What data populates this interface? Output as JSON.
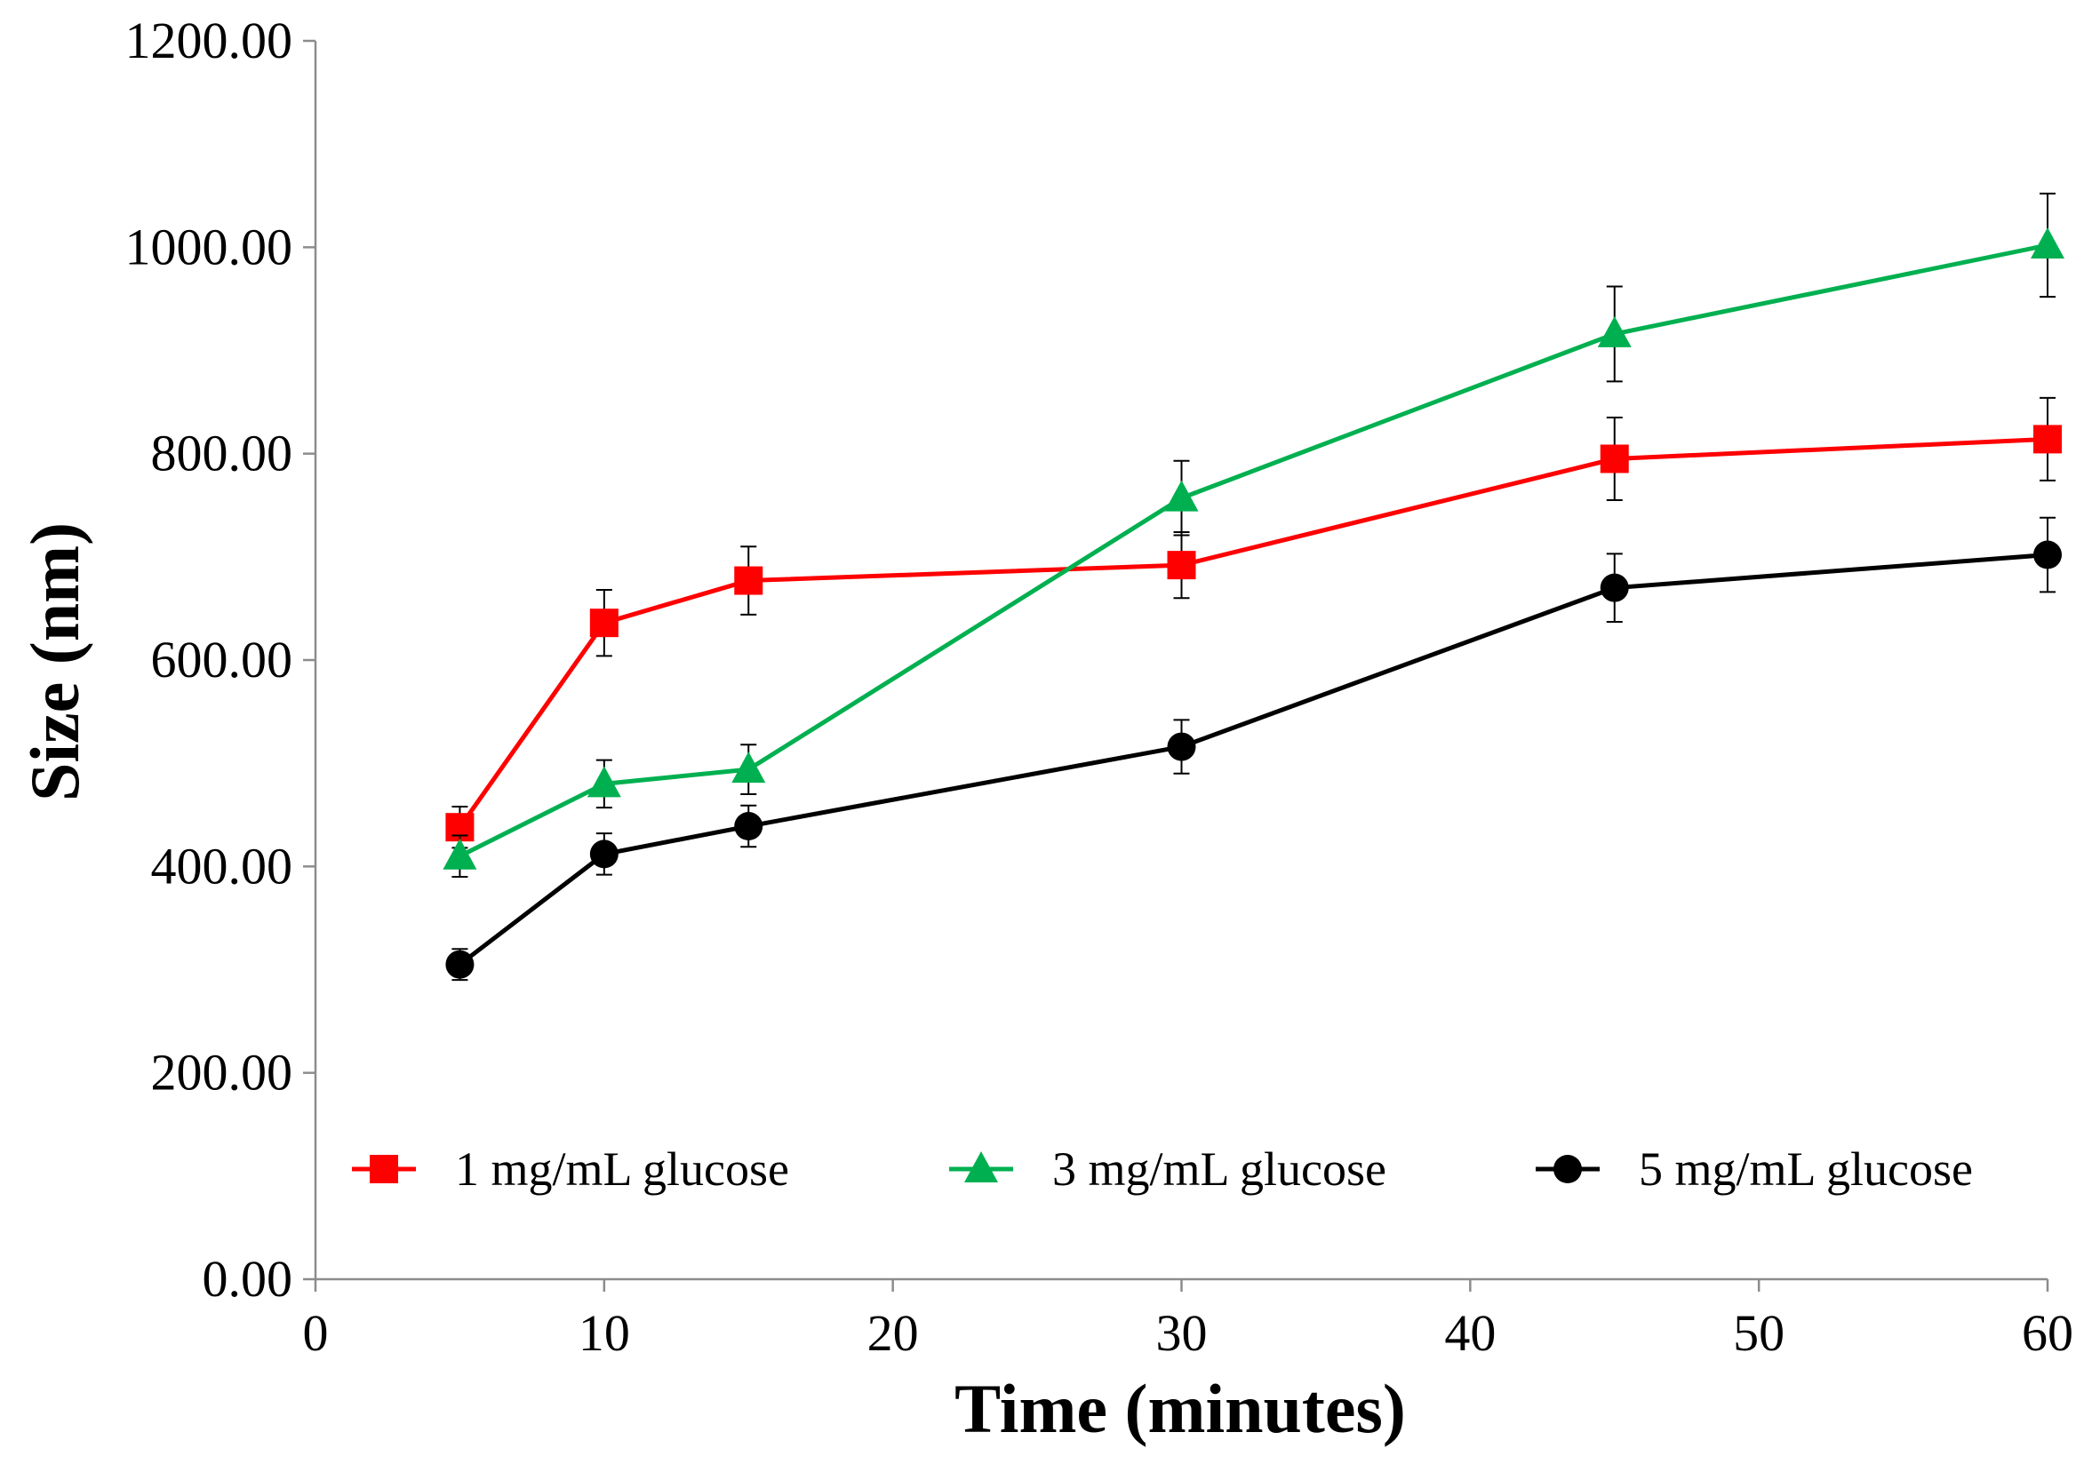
{
  "chart_data": {
    "type": "line",
    "title": "",
    "xlabel": "Time (minutes)",
    "ylabel": "Size (nm)",
    "xlim": [
      0,
      60
    ],
    "ylim": [
      0,
      1200
    ],
    "xticks": [
      "0",
      "10",
      "20",
      "30",
      "40",
      "50",
      "60"
    ],
    "yticks": [
      "0.00",
      "200.00",
      "400.00",
      "600.00",
      "800.00",
      "1000.00",
      "1200.00"
    ],
    "grid": false,
    "legend_position": "bottom",
    "series": [
      {
        "name": "1 mg/mL glucose",
        "color": "#ff0000",
        "marker": "square",
        "x": [
          5,
          10,
          15,
          30,
          45,
          60
        ],
        "y": [
          438,
          636,
          677,
          692,
          795,
          814
        ],
        "error": [
          20,
          32,
          33,
          32,
          40,
          40
        ]
      },
      {
        "name": "3 mg/mL glucose",
        "color": "#00b050",
        "marker": "triangle",
        "x": [
          5,
          10,
          15,
          30,
          45,
          60
        ],
        "y": [
          410,
          480,
          494,
          757,
          916,
          1002
        ],
        "error": [
          20,
          23,
          24,
          36,
          46,
          50
        ]
      },
      {
        "name": "5 mg/mL glucose",
        "color": "#000000",
        "marker": "circle",
        "x": [
          5,
          10,
          15,
          30,
          45,
          60
        ],
        "y": [
          305,
          412,
          439,
          516,
          670,
          702
        ],
        "error": [
          15,
          20,
          20,
          26,
          33,
          36
        ]
      }
    ]
  }
}
